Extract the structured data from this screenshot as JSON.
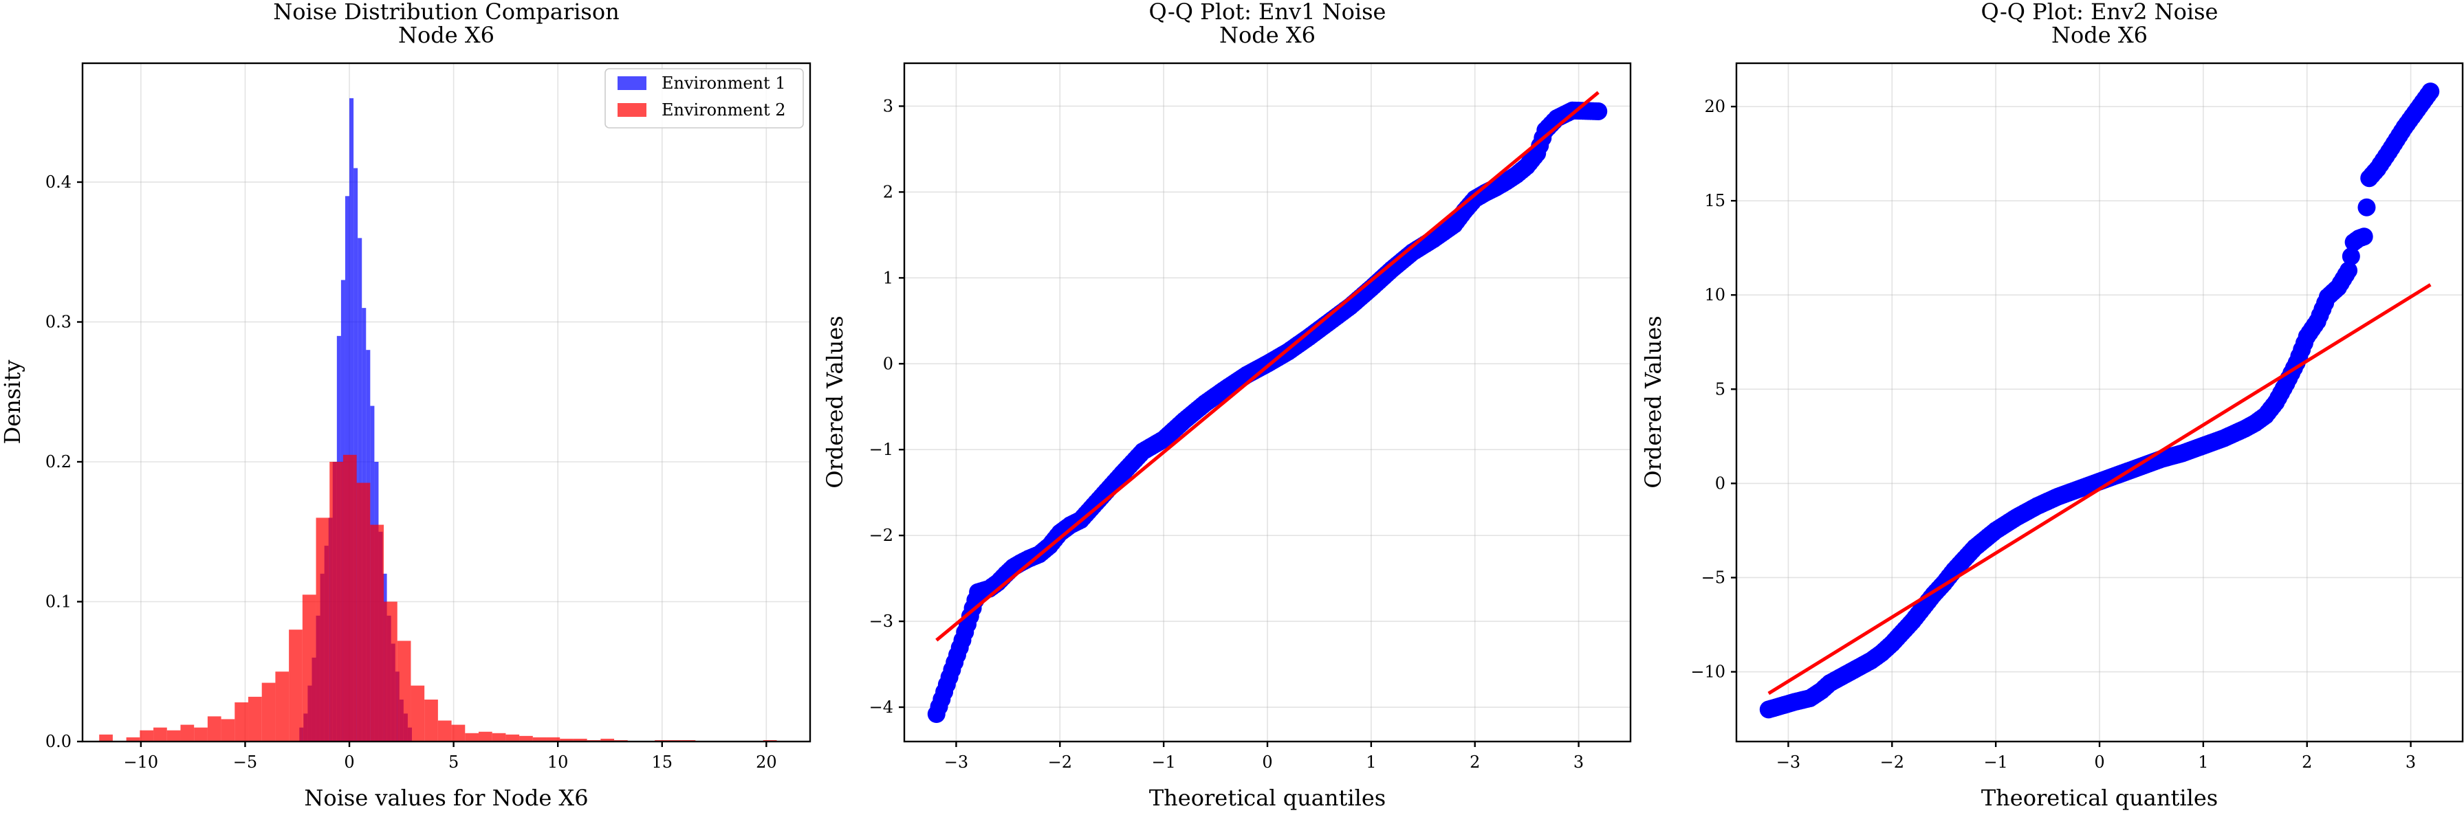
{
  "chart_data": [
    {
      "type": "histogram",
      "title": "Noise Distribution Comparison",
      "subtitle": "Node X6",
      "xlabel": "Noise values for Node X6",
      "ylabel": "Density",
      "xlim": [
        -12.8,
        22.1
      ],
      "ylim": [
        0,
        0.485
      ],
      "xticks": [
        -10,
        -5,
        0,
        5,
        10,
        15,
        20
      ],
      "yticks": [
        0.0,
        0.1,
        0.2,
        0.3,
        0.4
      ],
      "xtick_labels": [
        "−10",
        "−5",
        "0",
        "5",
        "10",
        "15",
        "20"
      ],
      "ytick_labels": [
        "0.0",
        "0.1",
        "0.2",
        "0.3",
        "0.4"
      ],
      "grid": true,
      "legend": {
        "placement": "top-right",
        "entries": [
          "Environment 1",
          "Environment 2"
        ]
      },
      "series": [
        {
          "name": "Environment 1",
          "color": "#0000ff",
          "alpha": 0.7,
          "bin_edges": [
            -2.4,
            -2.2,
            -2.0,
            -1.8,
            -1.6,
            -1.4,
            -1.2,
            -1.0,
            -0.8,
            -0.6,
            -0.4,
            -0.2,
            0.0,
            0.2,
            0.4,
            0.6,
            0.8,
            1.0,
            1.2,
            1.4,
            1.6,
            1.8,
            2.0,
            2.2,
            2.4,
            2.6,
            2.8,
            3.0
          ],
          "densities": [
            0.01,
            0.02,
            0.04,
            0.06,
            0.09,
            0.12,
            0.14,
            0.16,
            0.2,
            0.29,
            0.33,
            0.39,
            0.46,
            0.41,
            0.36,
            0.31,
            0.28,
            0.24,
            0.2,
            0.15,
            0.12,
            0.09,
            0.07,
            0.05,
            0.03,
            0.02,
            0.01
          ]
        },
        {
          "name": "Environment 2",
          "color": "#ff0000",
          "alpha": 0.7,
          "bin_edges": [
            -12.0,
            -11.35,
            -10.7,
            -10.05,
            -9.4,
            -8.75,
            -8.1,
            -7.45,
            -6.8,
            -6.15,
            -5.5,
            -4.85,
            -4.2,
            -3.55,
            -2.9,
            -2.25,
            -1.6,
            -0.95,
            -0.3,
            0.35,
            1.0,
            1.65,
            2.3,
            2.95,
            3.6,
            4.25,
            4.9,
            5.55,
            6.2,
            6.85,
            7.5,
            8.15,
            8.8,
            9.45,
            10.1,
            10.75,
            11.4,
            12.05,
            12.7,
            13.35,
            14.0,
            14.65,
            15.3,
            15.95,
            16.6,
            17.25,
            17.9,
            18.55,
            19.2,
            19.85,
            20.5
          ],
          "densities": [
            0.005,
            0.0,
            0.003,
            0.008,
            0.01,
            0.008,
            0.012,
            0.01,
            0.018,
            0.016,
            0.028,
            0.032,
            0.042,
            0.05,
            0.08,
            0.105,
            0.16,
            0.2,
            0.205,
            0.185,
            0.155,
            0.1,
            0.072,
            0.04,
            0.03,
            0.015,
            0.012,
            0.006,
            0.007,
            0.006,
            0.005,
            0.004,
            0.003,
            0.003,
            0.002,
            0.002,
            0.001,
            0.002,
            0.001,
            0.0,
            0.0,
            0.001,
            0.001,
            0.001,
            0.0,
            0.0,
            0.0,
            0.0,
            0.0,
            0.001
          ]
        }
      ]
    },
    {
      "type": "scatter",
      "title": "Q-Q Plot: Env1 Noise",
      "subtitle": "Node X6",
      "xlabel": "Theoretical quantiles",
      "ylabel": "Ordered Values",
      "xlim": [
        -3.5,
        3.5
      ],
      "ylim": [
        -4.4,
        3.5
      ],
      "xticks": [
        -3,
        -2,
        -1,
        0,
        1,
        2,
        3
      ],
      "yticks": [
        -4,
        -3,
        -2,
        -1,
        0,
        1,
        2,
        3
      ],
      "xtick_labels": [
        "−3",
        "−2",
        "−1",
        "0",
        "1",
        "2",
        "3"
      ],
      "ytick_labels": [
        "−4",
        "−3",
        "−2",
        "−1",
        "0",
        "1",
        "2",
        "3"
      ],
      "grid": true,
      "points_color": "#0000ff",
      "line_color": "#ff0000",
      "points_x": [
        -3.19,
        -2.94,
        -2.79,
        -2.68,
        -2.6,
        -2.52,
        -2.45,
        -2.38,
        -2.3,
        -2.2,
        -2.1,
        -2.0,
        -1.9,
        -1.8,
        -1.6,
        -1.4,
        -1.2,
        -1.0,
        -0.8,
        -0.6,
        -0.4,
        -0.2,
        0.0,
        0.2,
        0.4,
        0.6,
        0.8,
        1.0,
        1.2,
        1.4,
        1.6,
        1.8,
        1.9,
        2.0,
        2.1,
        2.2,
        2.3,
        2.4,
        2.5,
        2.6,
        2.68,
        2.79,
        2.94,
        3.19
      ],
      "points_y": [
        -4.08,
        -3.22,
        -2.66,
        -2.62,
        -2.55,
        -2.45,
        -2.37,
        -2.32,
        -2.27,
        -2.22,
        -2.12,
        -1.97,
        -1.88,
        -1.82,
        -1.55,
        -1.28,
        -1.02,
        -0.88,
        -0.66,
        -0.46,
        -0.29,
        -0.13,
        0.0,
        0.14,
        0.31,
        0.49,
        0.67,
        0.88,
        1.1,
        1.3,
        1.45,
        1.62,
        1.78,
        1.92,
        1.99,
        2.05,
        2.12,
        2.2,
        2.3,
        2.45,
        2.72,
        2.86,
        2.95,
        2.94
      ],
      "fit_line": {
        "slope": 1.0,
        "intercept": -0.03
      }
    },
    {
      "type": "scatter",
      "title": "Q-Q Plot: Env2 Noise",
      "subtitle": "Node X6",
      "xlabel": "Theoretical quantiles",
      "ylabel": "Ordered Values",
      "xlim": [
        -3.5,
        3.5
      ],
      "ylim": [
        -13.7,
        22.3
      ],
      "xticks": [
        -3,
        -2,
        -1,
        0,
        1,
        2,
        3
      ],
      "yticks": [
        -10,
        -5,
        0,
        5,
        10,
        15,
        20
      ],
      "xtick_labels": [
        "−3",
        "−2",
        "−1",
        "0",
        "1",
        "2",
        "3"
      ],
      "ytick_labels": [
        "−10",
        "−5",
        "0",
        "5",
        "10",
        "15",
        "20"
      ],
      "grid": true,
      "points_color": "#0000ff",
      "line_color": "#ff0000",
      "points_x": [
        -3.19,
        -2.94,
        -2.79,
        -2.68,
        -2.6,
        -2.5,
        -2.4,
        -2.3,
        -2.2,
        -2.1,
        -2.0,
        -1.9,
        -1.8,
        -1.7,
        -1.6,
        -1.5,
        -1.4,
        -1.3,
        -1.2,
        -1.0,
        -0.8,
        -0.6,
        -0.4,
        -0.2,
        0.0,
        0.2,
        0.4,
        0.6,
        0.8,
        1.0,
        1.2,
        1.4,
        1.5,
        1.6,
        1.7,
        1.8,
        1.9,
        2.0,
        2.1,
        2.2,
        2.3,
        2.4,
        2.45,
        2.5,
        2.55,
        2.6,
        2.68,
        2.79,
        2.94,
        3.19
      ],
      "points_y": [
        -12.0,
        -11.6,
        -11.4,
        -11.0,
        -10.6,
        -10.3,
        -10.0,
        -9.7,
        -9.4,
        -9.0,
        -8.5,
        -7.9,
        -7.3,
        -6.6,
        -5.9,
        -5.3,
        -4.6,
        -4.0,
        -3.4,
        -2.5,
        -1.8,
        -1.2,
        -0.7,
        -0.3,
        0.1,
        0.5,
        0.9,
        1.3,
        1.6,
        2.0,
        2.4,
        2.9,
        3.2,
        3.6,
        4.3,
        5.3,
        6.4,
        7.8,
        8.6,
        9.9,
        10.4,
        11.3,
        12.8,
        13.0,
        13.1,
        16.2,
        16.7,
        17.6,
        18.9,
        20.8
      ],
      "fit_line": {
        "slope": 3.4,
        "intercept": -0.3
      }
    }
  ]
}
